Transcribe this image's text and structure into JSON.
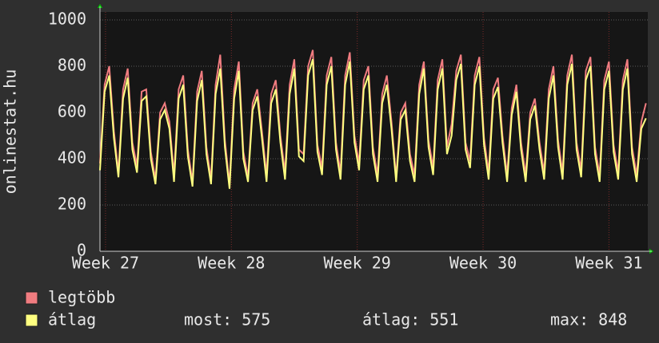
{
  "chart_data": {
    "type": "line",
    "y_label": "onlinestat.hu",
    "x": [
      0,
      0.25,
      0.5,
      0.75,
      1,
      1.25,
      1.5,
      1.75,
      2,
      2.25,
      2.5,
      2.75,
      3,
      3.25,
      3.5,
      3.75,
      4,
      4.25,
      4.5,
      4.75,
      5,
      5.25,
      5.5,
      5.75,
      6,
      6.25,
      6.5,
      6.75,
      7,
      7.25,
      7.5,
      7.75,
      8,
      8.25,
      8.5,
      8.75,
      9,
      9.25,
      9.5,
      9.75,
      10,
      10.25,
      10.5,
      10.75,
      11,
      11.25,
      11.5,
      11.75,
      12,
      12.25,
      12.5,
      12.75,
      13,
      13.25,
      13.5,
      13.75,
      14,
      14.25,
      14.5,
      14.75,
      15,
      15.25,
      15.5,
      15.75,
      16,
      16.25,
      16.5,
      16.75,
      17,
      17.25,
      17.5,
      17.75,
      18,
      18.25,
      18.5,
      18.75,
      19,
      19.25,
      19.5,
      19.75,
      20,
      20.25,
      20.5,
      20.75,
      21,
      21.25,
      21.5,
      21.75,
      22,
      22.25,
      22.5,
      22.75,
      23,
      23.25,
      23.5,
      23.75,
      24,
      24.25,
      24.5,
      24.75,
      25,
      25.25,
      25.5,
      25.75,
      26,
      26.25,
      26.5,
      26.75,
      27,
      27.25,
      27.5,
      27.75,
      28,
      28.25,
      28.5,
      28.75,
      29,
      29.25,
      29.5
    ],
    "series": [
      {
        "name": "legtöbb",
        "color": "#f07c80",
        "values": [
          380,
          720,
          800,
          520,
          340,
          700,
          790,
          470,
          370,
          690,
          700,
          430,
          310,
          600,
          640,
          560,
          330,
          700,
          760,
          440,
          300,
          690,
          780,
          450,
          310,
          720,
          850,
          480,
          290,
          700,
          820,
          430,
          320,
          640,
          700,
          520,
          330,
          680,
          740,
          500,
          340,
          720,
          830,
          440,
          420,
          800,
          870,
          460,
          360,
          760,
          840,
          470,
          340,
          760,
          860,
          500,
          380,
          740,
          800,
          450,
          330,
          680,
          760,
          560,
          320,
          600,
          640,
          420,
          330,
          720,
          820,
          480,
          360,
          740,
          830,
          450,
          550,
          780,
          850,
          470,
          390,
          760,
          840,
          490,
          340,
          700,
          750,
          500,
          330,
          620,
          720,
          470,
          330,
          600,
          660,
          470,
          340,
          700,
          800,
          480,
          340,
          760,
          850,
          470,
          350,
          780,
          840,
          450,
          330,
          740,
          820,
          460,
          340,
          740,
          830,
          450,
          330,
          560,
          640
        ]
      },
      {
        "name": "átlag",
        "color": "#ffff80",
        "values": [
          350,
          690,
          760,
          490,
          320,
          660,
          750,
          440,
          340,
          650,
          670,
          400,
          290,
          570,
          610,
          530,
          300,
          660,
          720,
          410,
          280,
          650,
          740,
          420,
          290,
          680,
          790,
          450,
          270,
          660,
          780,
          400,
          300,
          610,
          670,
          490,
          300,
          640,
          700,
          470,
          310,
          680,
          790,
          410,
          390,
          760,
          830,
          430,
          330,
          720,
          800,
          440,
          310,
          720,
          820,
          470,
          350,
          700,
          760,
          420,
          300,
          640,
          720,
          530,
          300,
          570,
          610,
          390,
          300,
          680,
          790,
          450,
          330,
          700,
          790,
          420,
          500,
          740,
          810,
          440,
          360,
          720,
          800,
          460,
          310,
          660,
          710,
          470,
          300,
          590,
          690,
          440,
          300,
          570,
          630,
          440,
          310,
          660,
          760,
          450,
          310,
          720,
          810,
          440,
          320,
          740,
          800,
          420,
          300,
          700,
          780,
          430,
          310,
          700,
          790,
          420,
          300,
          530,
          575
        ]
      }
    ],
    "xlim": [
      0,
      29.6
    ],
    "xticks": [
      {
        "value": 0.3,
        "label": "Week 27"
      },
      {
        "value": 7.1,
        "label": "Week 28"
      },
      {
        "value": 13.9,
        "label": "Week 29"
      },
      {
        "value": 20.7,
        "label": "Week 30"
      },
      {
        "value": 27.5,
        "label": "Week 31"
      }
    ],
    "ylim": [
      0,
      1000
    ],
    "yticks": [
      0,
      200,
      400,
      600,
      800,
      1000
    ],
    "grid": true,
    "stats": [
      {
        "label": "most:",
        "value": 575
      },
      {
        "label": "átlag:",
        "value": 551
      },
      {
        "label": "max:",
        "value": 848
      }
    ]
  }
}
